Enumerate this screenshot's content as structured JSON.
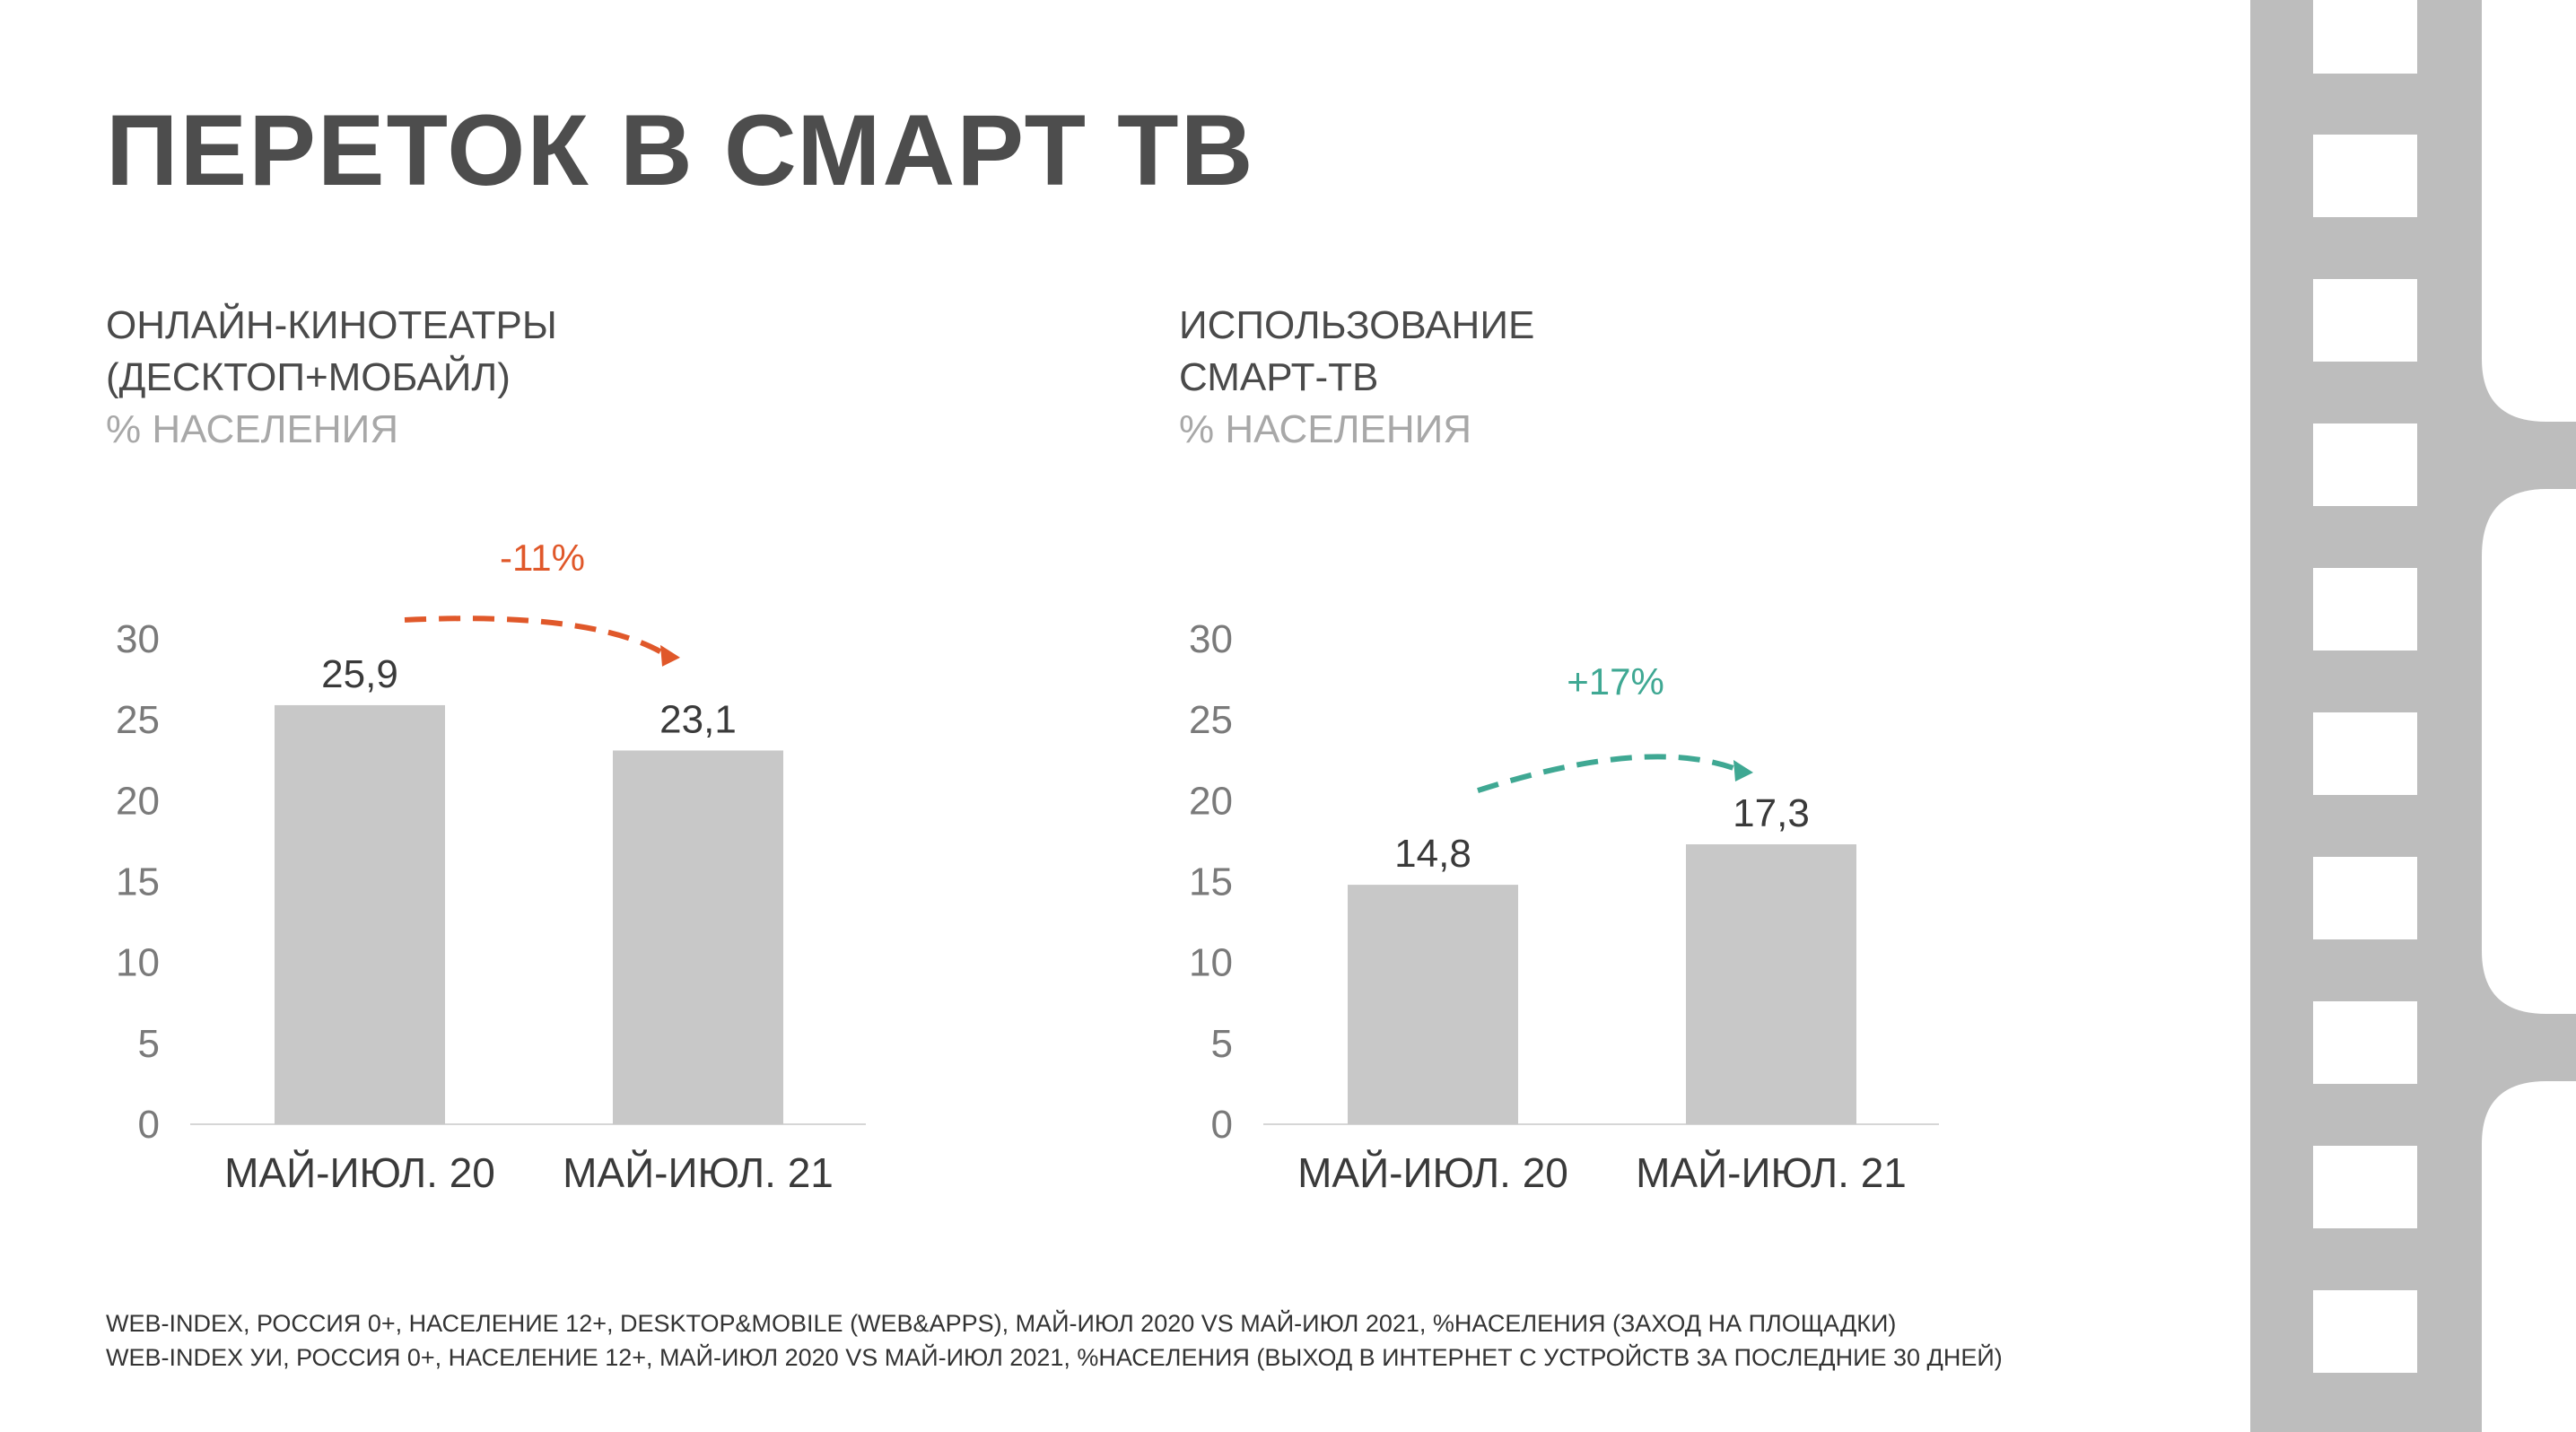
{
  "title": "ПЕРЕТОК В СМАРТ ТВ",
  "colors": {
    "bar": "#c8c8c8",
    "decline": "#e0582a",
    "growth": "#3fa893",
    "filmstrip": "#bdbdbd",
    "axis_text": "#7a7a7a"
  },
  "panels": [
    {
      "heading_lines": [
        "ОНЛАЙН-КИНОТЕАТРЫ",
        "(ДЕСКТОП+МОБАЙЛ)"
      ],
      "unit": "% НАСЕЛЕНИЯ",
      "change": "-11%",
      "change_color": "#e0582a"
    },
    {
      "heading_lines": [
        "ИСПОЛЬЗОВАНИЕ",
        "СМАРТ-ТВ"
      ],
      "unit": "% НАСЕЛЕНИЯ",
      "change": "+17%",
      "change_color": "#3fa893"
    }
  ],
  "chart_data": [
    {
      "type": "bar",
      "title": "ОНЛАЙН-КИНОТЕАТРЫ (ДЕСКТОП+МОБАЙЛ)",
      "ylabel": "% НАСЕЛЕНИЯ",
      "categories": [
        "МАЙ-ИЮЛ. 20",
        "МАЙ-ИЮЛ. 21"
      ],
      "values": [
        25.9,
        23.1
      ],
      "value_labels": [
        "25,9",
        "23,1"
      ],
      "yticks": [
        "0",
        "5",
        "10",
        "15",
        "20",
        "25",
        "30"
      ],
      "ylim": [
        0,
        30
      ],
      "grid": false,
      "annotation": "-11%"
    },
    {
      "type": "bar",
      "title": "ИСПОЛЬЗОВАНИЕ СМАРТ-ТВ",
      "ylabel": "% НАСЕЛЕНИЯ",
      "categories": [
        "МАЙ-ИЮЛ. 20",
        "МАЙ-ИЮЛ. 21"
      ],
      "values": [
        14.8,
        17.3
      ],
      "value_labels": [
        "14,8",
        "17,3"
      ],
      "yticks": [
        "0",
        "5",
        "10",
        "15",
        "20",
        "25",
        "30"
      ],
      "ylim": [
        0,
        30
      ],
      "grid": false,
      "annotation": "+17%"
    }
  ],
  "footer": [
    "WEB-INDEX, РОССИЯ 0+, НАСЕЛЕНИЕ 12+, DESKTOP&MOBILE (WEB&APPS), МАЙ-ИЮЛ 2020 VS МАЙ-ИЮЛ 2021, %НАСЕЛЕНИЯ (ЗАХОД НА ПЛОЩАДКИ)",
    "WEB-INDEX УИ, РОССИЯ 0+, НАСЕЛЕНИЕ 12+, МАЙ-ИЮЛ 2020 VS МАЙ-ИЮЛ 2021, %НАСЕЛЕНИЯ (ВЫХОД В ИНТЕРНЕТ С УСТРОЙСТВ ЗА ПОСЛЕДНИЕ 30 ДНЕЙ)"
  ]
}
